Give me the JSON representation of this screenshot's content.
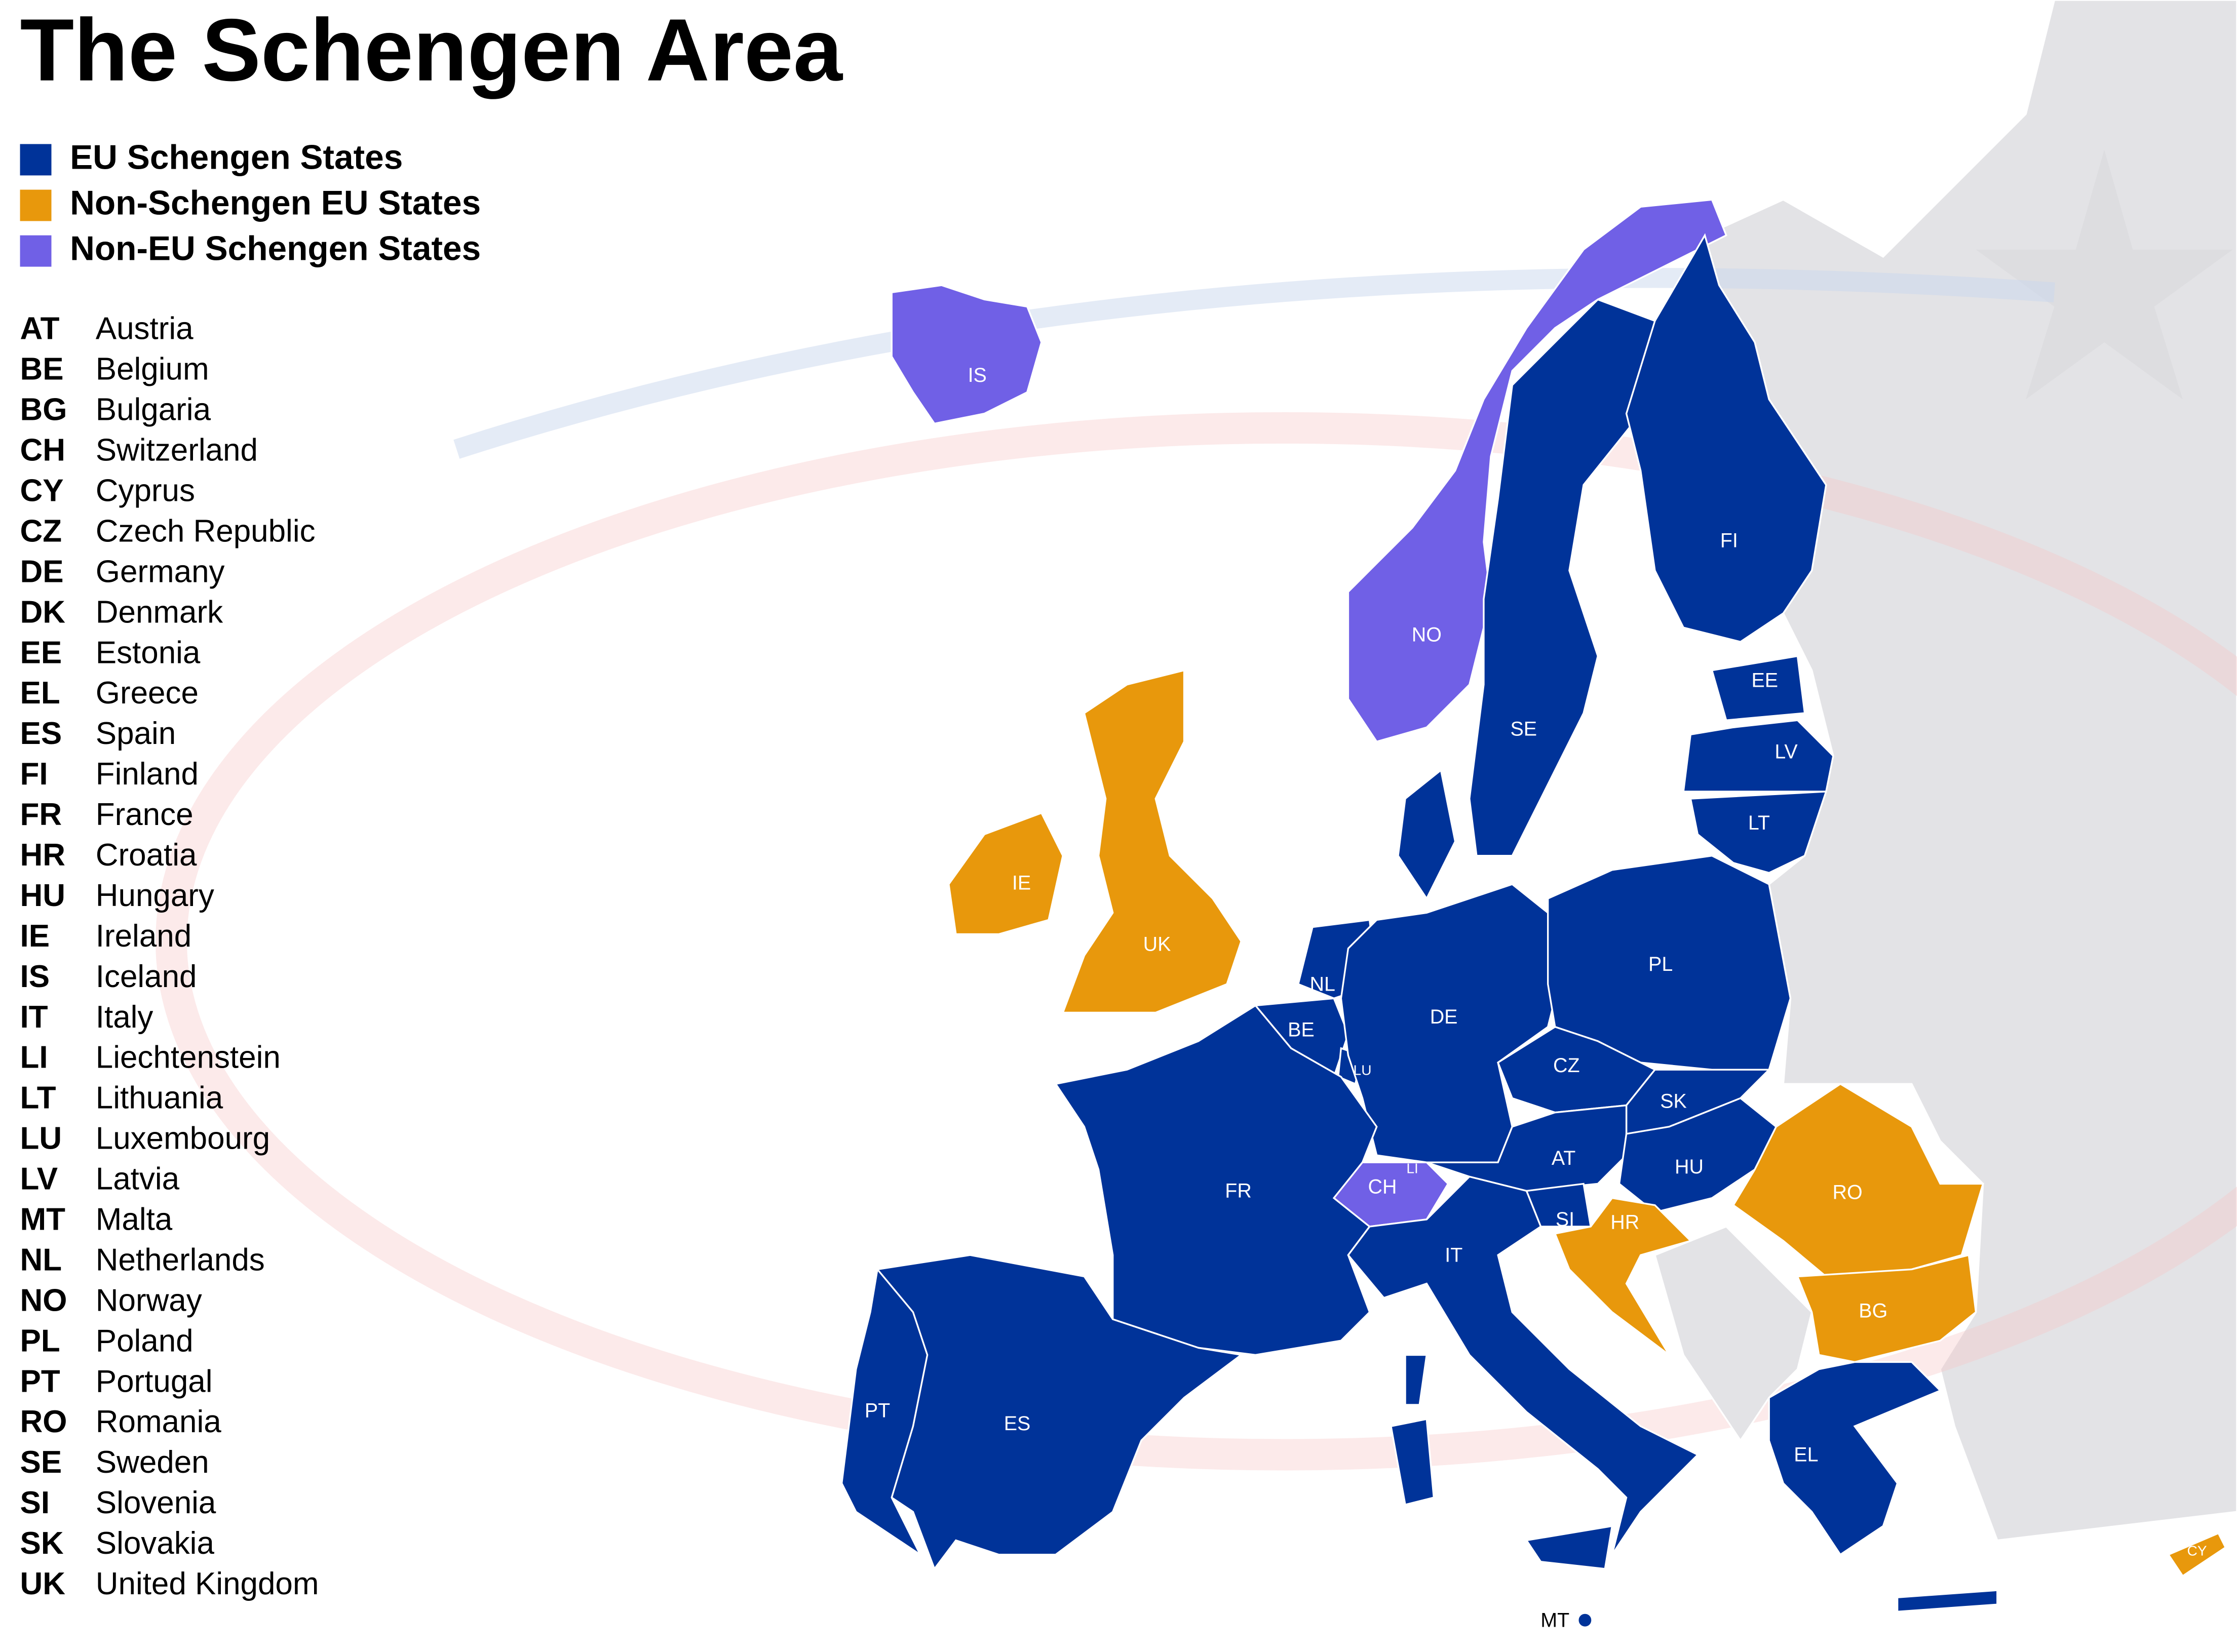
{
  "title": "The Schengen Area",
  "legend": [
    {
      "label": "EU Schengen States",
      "color": "#003399"
    },
    {
      "label": "Non-Schengen EU States",
      "color": "#e8980c"
    },
    {
      "label": "Non-EU Schengen States",
      "color": "#7060e6"
    }
  ],
  "countries": [
    {
      "code": "AT",
      "name": "Austria"
    },
    {
      "code": "BE",
      "name": "Belgium"
    },
    {
      "code": "BG",
      "name": "Bulgaria"
    },
    {
      "code": "CH",
      "name": "Switzerland"
    },
    {
      "code": "CY",
      "name": "Cyprus"
    },
    {
      "code": "CZ",
      "name": "Czech Republic"
    },
    {
      "code": "DE",
      "name": "Germany"
    },
    {
      "code": "DK",
      "name": "Denmark"
    },
    {
      "code": "EE",
      "name": "Estonia"
    },
    {
      "code": "EL",
      "name": "Greece"
    },
    {
      "code": "ES",
      "name": "Spain"
    },
    {
      "code": "FI",
      "name": "Finland"
    },
    {
      "code": "FR",
      "name": "France"
    },
    {
      "code": "HR",
      "name": "Croatia"
    },
    {
      "code": "HU",
      "name": "Hungary"
    },
    {
      "code": "IE",
      "name": "Ireland"
    },
    {
      "code": "IS",
      "name": "Iceland"
    },
    {
      "code": "IT",
      "name": "Italy"
    },
    {
      "code": "LI",
      "name": "Liechtenstein"
    },
    {
      "code": "LT",
      "name": "Lithuania"
    },
    {
      "code": "LU",
      "name": "Luxembourg"
    },
    {
      "code": "LV",
      "name": "Latvia"
    },
    {
      "code": "MT",
      "name": "Malta"
    },
    {
      "code": "NL",
      "name": "Netherlands"
    },
    {
      "code": "NO",
      "name": "Norway"
    },
    {
      "code": "PL",
      "name": "Poland"
    },
    {
      "code": "PT",
      "name": "Portugal"
    },
    {
      "code": "RO",
      "name": "Romania"
    },
    {
      "code": "SE",
      "name": "Sweden"
    },
    {
      "code": "SI",
      "name": "Slovenia"
    },
    {
      "code": "SK",
      "name": "Slovakia"
    },
    {
      "code": "UK",
      "name": "United Kingdom"
    }
  ],
  "map_labels": [
    "IS",
    "NO",
    "SE",
    "FI",
    "EE",
    "LV",
    "LT",
    "IE",
    "UK",
    "NL",
    "BE",
    "LU",
    "DE",
    "PL",
    "CZ",
    "SK",
    "AT",
    "HU",
    "CH",
    "LI",
    "SI",
    "HR",
    "RO",
    "BG",
    "FR",
    "IT",
    "PT",
    "ES",
    "EL",
    "CY",
    "MT"
  ]
}
